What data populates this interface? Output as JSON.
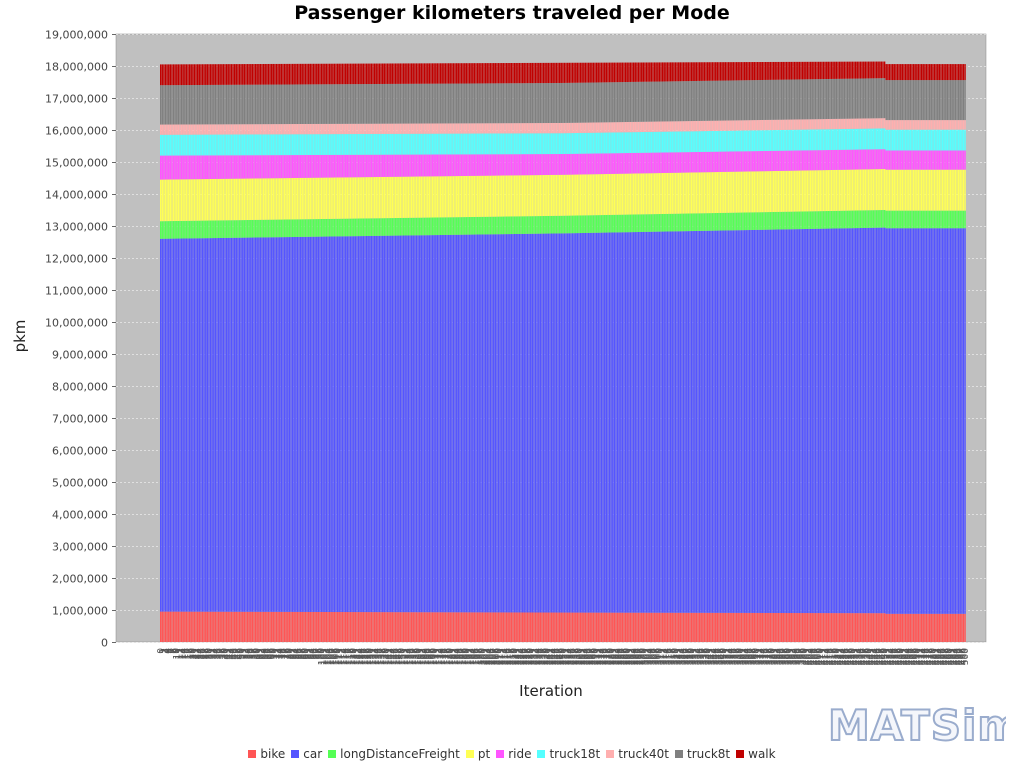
{
  "chart_data": {
    "type": "bar",
    "stacked": true,
    "title": "Passenger kilometers traveled per Mode",
    "xlabel": "Iteration",
    "ylabel": "pkm",
    "ylim": [
      0,
      19000000
    ],
    "yticks": [
      0,
      1000000,
      2000000,
      3000000,
      4000000,
      5000000,
      6000000,
      7000000,
      8000000,
      9000000,
      10000000,
      11000000,
      12000000,
      13000000,
      14000000,
      15000000,
      16000000,
      17000000,
      18000000,
      19000000
    ],
    "ytick_labels": [
      "0",
      "1,000,000",
      "2,000,000",
      "3,000,000",
      "4,000,000",
      "5,000,000",
      "6,000,000",
      "7,000,000",
      "8,000,000",
      "9,000,000",
      "10,000,000",
      "11,000,000",
      "12,000,000",
      "13,000,000",
      "14,000,000",
      "15,000,000",
      "16,000,000",
      "17,000,000",
      "18,000,000",
      "19,000,000"
    ],
    "x": {
      "first": 0,
      "last": 500,
      "count": 501
    },
    "grid": true,
    "legend_position": "bottom",
    "series": [
      {
        "name": "bike",
        "color": "#ff5555",
        "points": [
          [
            0,
            950000
          ],
          [
            250,
            920000
          ],
          [
            450,
            900000
          ],
          [
            451,
            880000
          ],
          [
            500,
            880000
          ]
        ]
      },
      {
        "name": "car",
        "color": "#5555ff",
        "points": [
          [
            0,
            11650000
          ],
          [
            250,
            11850000
          ],
          [
            450,
            12050000
          ],
          [
            451,
            12050000
          ],
          [
            500,
            12050000
          ]
        ]
      },
      {
        "name": "longDistanceFreight",
        "color": "#55ff55",
        "points": [
          [
            0,
            550000
          ],
          [
            250,
            550000
          ],
          [
            450,
            550000
          ],
          [
            451,
            550000
          ],
          [
            500,
            550000
          ]
        ]
      },
      {
        "name": "pt",
        "color": "#ffff55",
        "points": [
          [
            0,
            1300000
          ],
          [
            250,
            1280000
          ],
          [
            450,
            1280000
          ],
          [
            451,
            1280000
          ],
          [
            500,
            1280000
          ]
        ]
      },
      {
        "name": "ride",
        "color": "#ff55ff",
        "points": [
          [
            0,
            750000
          ],
          [
            250,
            650000
          ],
          [
            450,
            620000
          ],
          [
            451,
            600000
          ],
          [
            500,
            600000
          ]
        ]
      },
      {
        "name": "truck18t",
        "color": "#55ffff",
        "points": [
          [
            0,
            650000
          ],
          [
            250,
            650000
          ],
          [
            450,
            650000
          ],
          [
            451,
            650000
          ],
          [
            500,
            650000
          ]
        ]
      },
      {
        "name": "truck40t",
        "color": "#ffafaf",
        "points": [
          [
            0,
            320000
          ],
          [
            250,
            320000
          ],
          [
            450,
            320000
          ],
          [
            451,
            300000
          ],
          [
            500,
            300000
          ]
        ]
      },
      {
        "name": "truck8t",
        "color": "#808080",
        "points": [
          [
            0,
            1230000
          ],
          [
            250,
            1250000
          ],
          [
            450,
            1250000
          ],
          [
            451,
            1250000
          ],
          [
            500,
            1250000
          ]
        ]
      },
      {
        "name": "walk",
        "color": "#c00000",
        "points": [
          [
            0,
            650000
          ],
          [
            250,
            630000
          ],
          [
            450,
            520000
          ],
          [
            451,
            500000
          ],
          [
            500,
            500000
          ]
        ]
      }
    ]
  },
  "legend": {
    "items": [
      "bike",
      "car",
      "longDistanceFreight",
      "pt",
      "ride",
      "truck18t",
      "truck40t",
      "truck8t",
      "walk"
    ]
  },
  "logo": {
    "text": "MATSim"
  },
  "colors": {
    "plot_background": "#c0c0c0",
    "grid": "#ffffff"
  }
}
